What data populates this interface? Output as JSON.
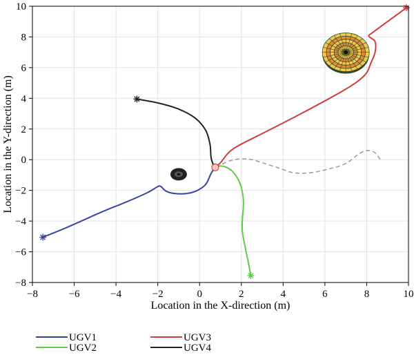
{
  "chart_data": {
    "type": "line",
    "title": "",
    "xlabel": "Location in the X-direction (m)",
    "ylabel": "Location in the Y-direction (m)",
    "xlim": [
      -8,
      10
    ],
    "ylim": [
      -8,
      10
    ],
    "xticks": [
      -8,
      -6,
      -4,
      -2,
      0,
      2,
      4,
      6,
      8,
      10
    ],
    "yticks": [
      -8,
      -6,
      -4,
      -2,
      0,
      2,
      4,
      6,
      8,
      10
    ],
    "grid": true,
    "legend_position": "below",
    "series": [
      {
        "name": "UGV1",
        "color": "#3a45a0",
        "points": [
          [
            -7.5,
            -5.05
          ],
          [
            -6.5,
            -4.5
          ],
          [
            -5.5,
            -3.9
          ],
          [
            -4.5,
            -3.3
          ],
          [
            -3.5,
            -2.75
          ],
          [
            -2.5,
            -2.15
          ],
          [
            -2.0,
            -1.75
          ],
          [
            -1.85,
            -1.75
          ],
          [
            -1.6,
            -2.05
          ],
          [
            -1.2,
            -2.2
          ],
          [
            -0.6,
            -2.2
          ],
          [
            -0.1,
            -2.0
          ],
          [
            0.3,
            -1.6
          ],
          [
            0.55,
            -0.9
          ],
          [
            0.75,
            -0.5
          ]
        ]
      },
      {
        "name": "UGV2",
        "color": "#5ccc46",
        "points": [
          [
            0.75,
            -0.5
          ],
          [
            0.9,
            -0.42
          ],
          [
            1.2,
            -0.45
          ],
          [
            1.6,
            -0.8
          ],
          [
            1.95,
            -1.6
          ],
          [
            2.1,
            -2.7
          ],
          [
            2.05,
            -3.9
          ],
          [
            2.05,
            -4.7
          ],
          [
            2.2,
            -5.8
          ],
          [
            2.35,
            -6.8
          ],
          [
            2.45,
            -7.55
          ]
        ]
      },
      {
        "name": "UGV3",
        "color": "#d43a3a",
        "points": [
          [
            0.75,
            -0.5
          ],
          [
            1.0,
            -0.2
          ],
          [
            1.6,
            0.7
          ],
          [
            3.0,
            1.7
          ],
          [
            5.0,
            3.1
          ],
          [
            7.0,
            4.6
          ],
          [
            7.9,
            5.5
          ],
          [
            8.2,
            6.3
          ],
          [
            8.4,
            7.0
          ],
          [
            8.4,
            7.7
          ],
          [
            8.1,
            8.05
          ],
          [
            8.3,
            8.3
          ],
          [
            9.0,
            9.0
          ],
          [
            9.9,
            9.9
          ]
        ]
      },
      {
        "name": "UGV4",
        "color": "#222222",
        "points": [
          [
            -3.0,
            3.95
          ],
          [
            -2.0,
            3.7
          ],
          [
            -1.0,
            3.3
          ],
          [
            -0.2,
            2.7
          ],
          [
            0.3,
            1.9
          ],
          [
            0.5,
            1.0
          ],
          [
            0.55,
            0.15
          ],
          [
            0.65,
            -0.3
          ],
          [
            0.75,
            -0.5
          ]
        ]
      }
    ],
    "reference_path": {
      "color": "#999999",
      "points": [
        [
          0.8,
          -0.5
        ],
        [
          1.5,
          -0.05
        ],
        [
          2.3,
          0.05
        ],
        [
          3.0,
          -0.2
        ],
        [
          3.8,
          -0.55
        ],
        [
          4.5,
          -0.85
        ],
        [
          5.3,
          -0.85
        ],
        [
          6.2,
          -0.6
        ],
        [
          7.0,
          -0.25
        ],
        [
          7.6,
          0.35
        ],
        [
          8.0,
          0.6
        ],
        [
          8.4,
          0.45
        ],
        [
          8.7,
          -0.1
        ]
      ]
    },
    "obstacles": [
      {
        "shape": "small-disc",
        "center": [
          -1.0,
          -0.95
        ],
        "color": "#222222"
      },
      {
        "shape": "large-disc",
        "center": [
          7.0,
          7.0
        ],
        "color": "#e8c83a"
      }
    ],
    "meeting_point": [
      0.75,
      -0.5
    ],
    "start_markers": [
      [
        -7.5,
        -5.05
      ],
      [
        2.45,
        -7.55
      ],
      [
        9.9,
        9.9
      ],
      [
        -3.0,
        3.95
      ]
    ]
  }
}
